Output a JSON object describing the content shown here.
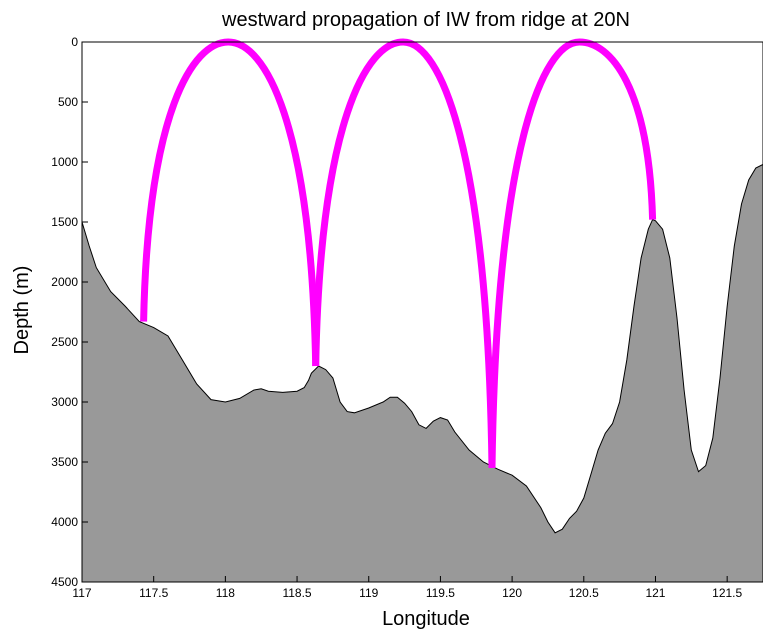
{
  "chart_data": {
    "type": "area",
    "title": "westward propagation of IW from ridge at 20N",
    "xlabel": "Longitude",
    "ylabel": "Depth (m)",
    "xlim": [
      117,
      121.75
    ],
    "ylim": [
      0,
      4500
    ],
    "y_reversed": true,
    "x_ticks": [
      "117",
      "117.5",
      "118",
      "118.5",
      "119",
      "119.5",
      "120",
      "120.5",
      "121",
      "121.5"
    ],
    "y_ticks": [
      "0",
      "500",
      "1000",
      "1500",
      "2000",
      "2500",
      "3000",
      "3500",
      "4000",
      "4500"
    ],
    "grid": false,
    "colors": {
      "bathymetry_fill": "#999999",
      "ray": "#ff00ff"
    },
    "bathymetry": [
      [
        117.0,
        1500
      ],
      [
        117.05,
        1700
      ],
      [
        117.1,
        1880
      ],
      [
        117.2,
        2080
      ],
      [
        117.3,
        2200
      ],
      [
        117.4,
        2330
      ],
      [
        117.5,
        2380
      ],
      [
        117.6,
        2450
      ],
      [
        117.7,
        2650
      ],
      [
        117.8,
        2850
      ],
      [
        117.9,
        2980
      ],
      [
        118.0,
        3000
      ],
      [
        118.1,
        2970
      ],
      [
        118.2,
        2900
      ],
      [
        118.25,
        2890
      ],
      [
        118.3,
        2910
      ],
      [
        118.4,
        2920
      ],
      [
        118.5,
        2910
      ],
      [
        118.55,
        2880
      ],
      [
        118.58,
        2820
      ],
      [
        118.6,
        2760
      ],
      [
        118.65,
        2700
      ],
      [
        118.7,
        2730
      ],
      [
        118.75,
        2800
      ],
      [
        118.8,
        3000
      ],
      [
        118.85,
        3080
      ],
      [
        118.9,
        3090
      ],
      [
        119.0,
        3050
      ],
      [
        119.1,
        3000
      ],
      [
        119.15,
        2960
      ],
      [
        119.2,
        2960
      ],
      [
        119.25,
        3010
      ],
      [
        119.3,
        3080
      ],
      [
        119.35,
        3190
      ],
      [
        119.4,
        3220
      ],
      [
        119.45,
        3160
      ],
      [
        119.5,
        3130
      ],
      [
        119.55,
        3150
      ],
      [
        119.6,
        3250
      ],
      [
        119.7,
        3400
      ],
      [
        119.8,
        3500
      ],
      [
        119.9,
        3560
      ],
      [
        120.0,
        3610
      ],
      [
        120.1,
        3700
      ],
      [
        120.2,
        3880
      ],
      [
        120.25,
        4000
      ],
      [
        120.3,
        4090
      ],
      [
        120.35,
        4060
      ],
      [
        120.4,
        3970
      ],
      [
        120.45,
        3910
      ],
      [
        120.5,
        3800
      ],
      [
        120.55,
        3600
      ],
      [
        120.6,
        3400
      ],
      [
        120.65,
        3260
      ],
      [
        120.7,
        3180
      ],
      [
        120.75,
        3000
      ],
      [
        120.8,
        2650
      ],
      [
        120.85,
        2200
      ],
      [
        120.9,
        1800
      ],
      [
        120.95,
        1560
      ],
      [
        120.98,
        1480
      ],
      [
        121.0,
        1490
      ],
      [
        121.05,
        1560
      ],
      [
        121.1,
        1800
      ],
      [
        121.15,
        2300
      ],
      [
        121.2,
        2900
      ],
      [
        121.25,
        3400
      ],
      [
        121.3,
        3580
      ],
      [
        121.35,
        3530
      ],
      [
        121.4,
        3300
      ],
      [
        121.45,
        2800
      ],
      [
        121.5,
        2200
      ],
      [
        121.55,
        1700
      ],
      [
        121.6,
        1350
      ],
      [
        121.65,
        1150
      ],
      [
        121.7,
        1050
      ],
      [
        121.75,
        1020
      ]
    ],
    "rays": [
      {
        "start": [
          117.43,
          2330
        ],
        "surface": [
          118.02,
          0
        ],
        "end": [
          118.63,
          2700
        ]
      },
      {
        "start": [
          118.63,
          2700
        ],
        "surface": [
          119.24,
          0
        ],
        "end": [
          119.86,
          3550
        ]
      },
      {
        "start": [
          119.86,
          3550
        ],
        "surface": [
          120.47,
          0
        ],
        "end": [
          120.98,
          1480
        ]
      }
    ]
  }
}
